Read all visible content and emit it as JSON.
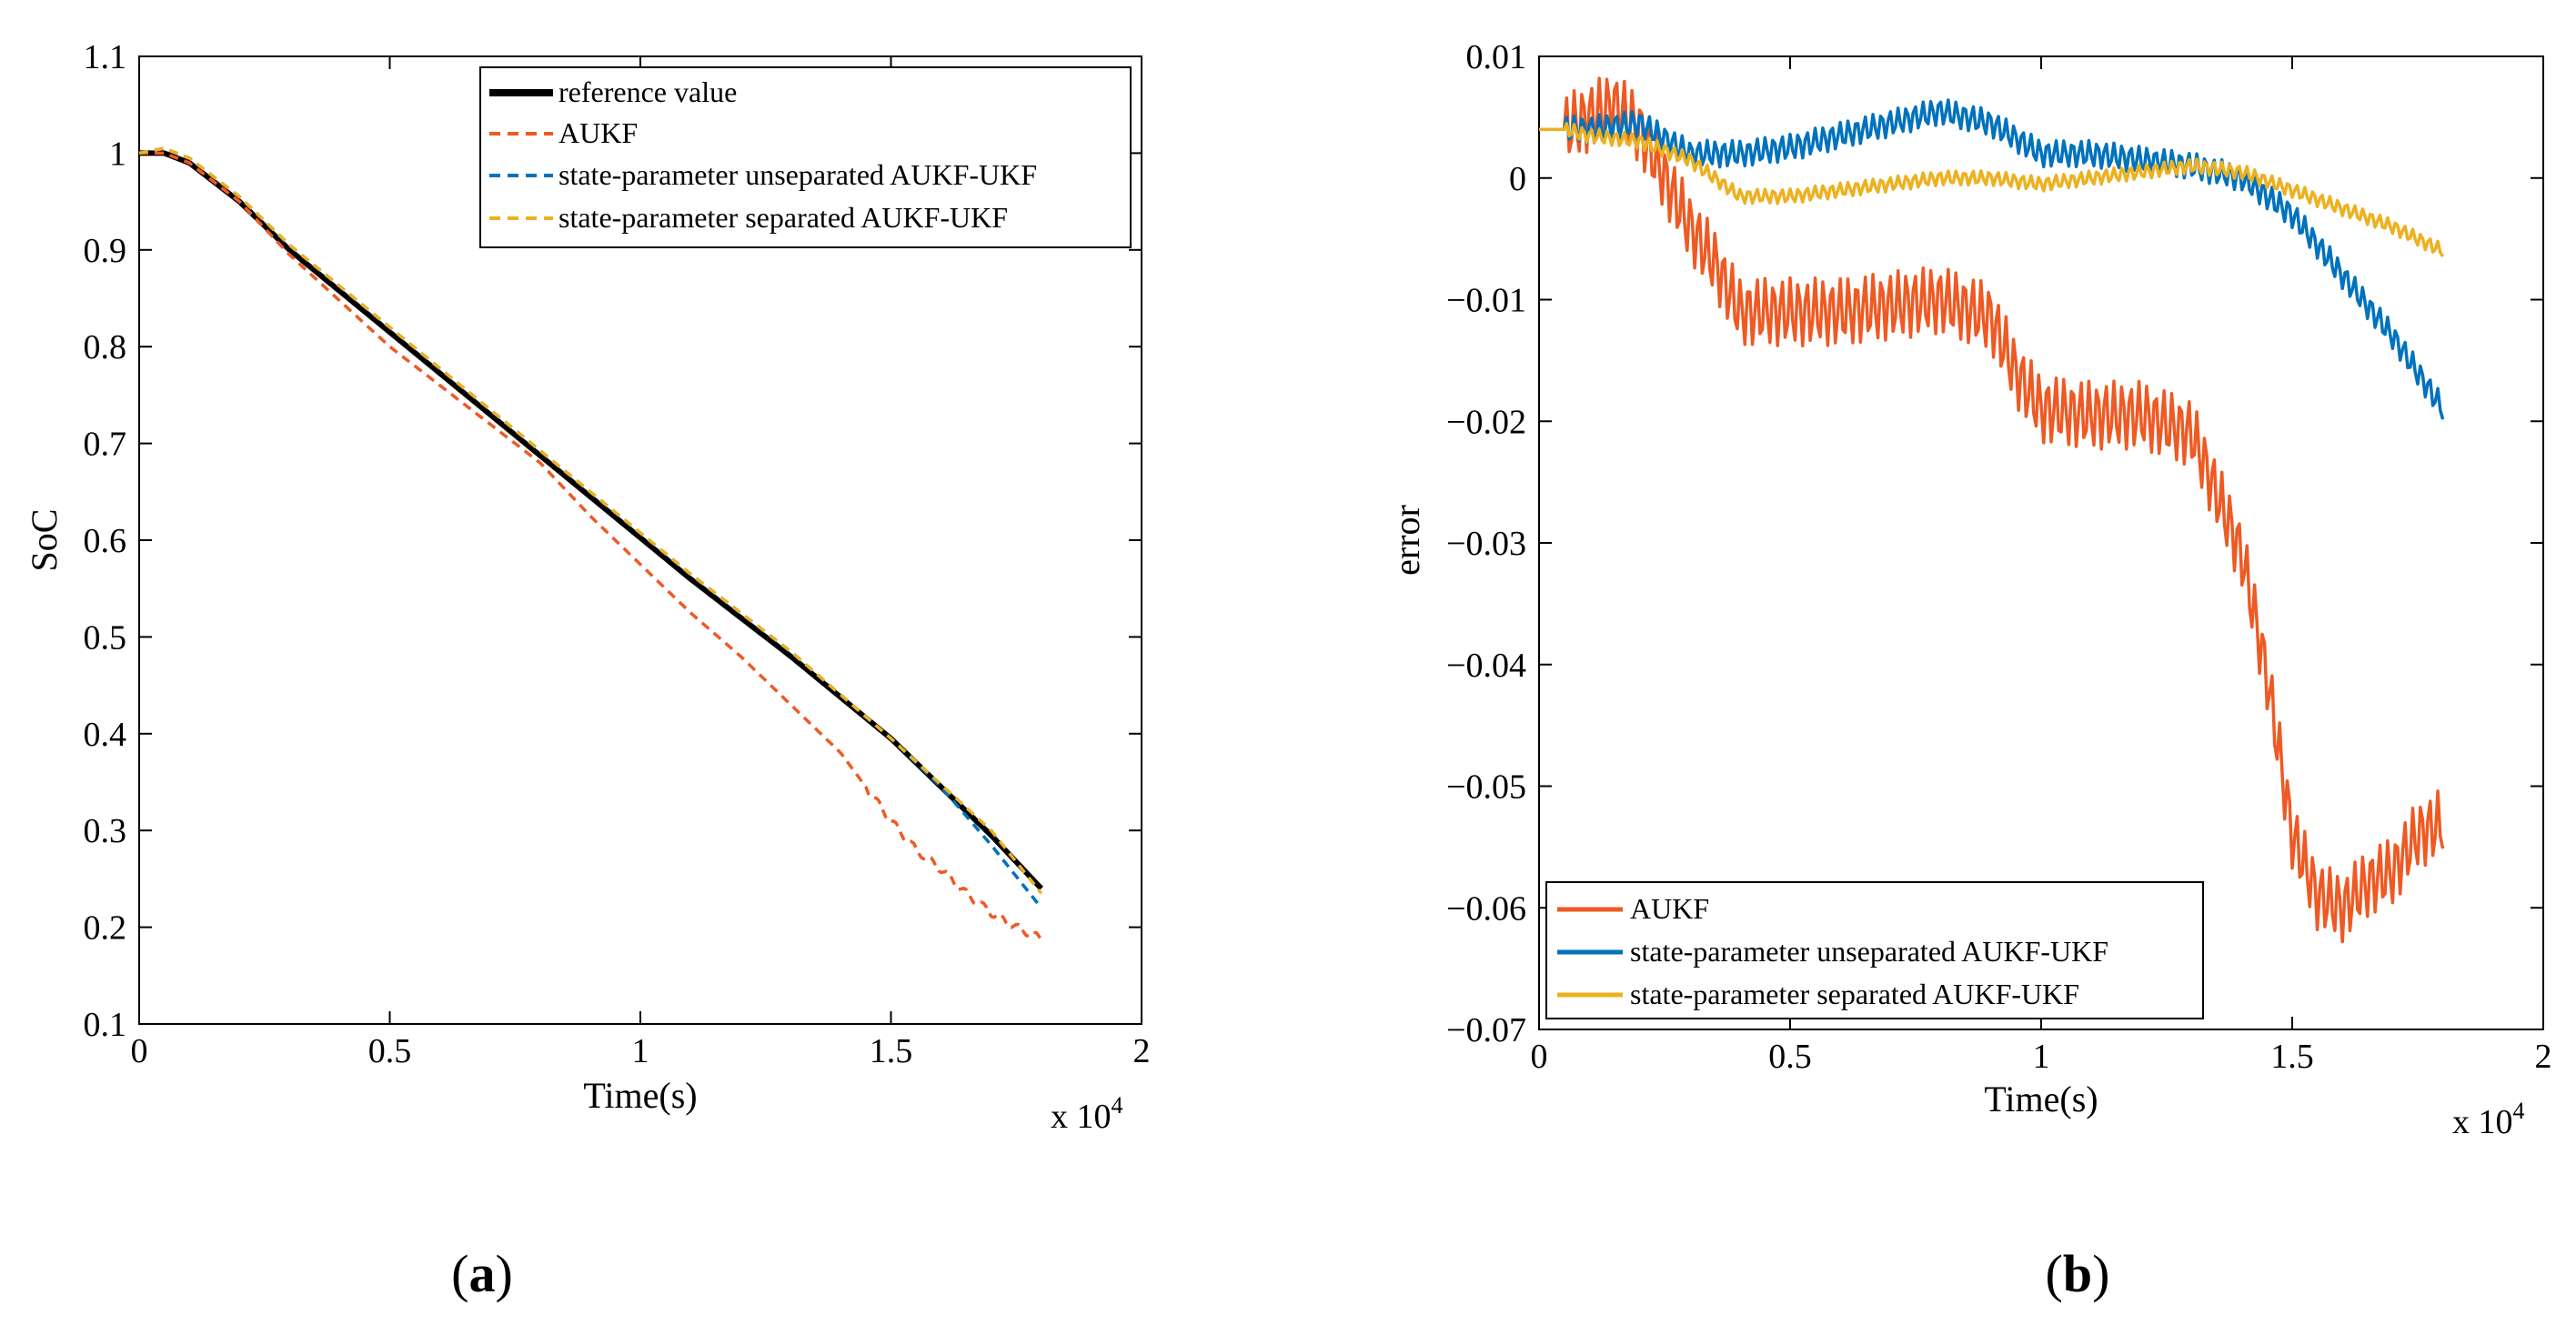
{
  "chart_data": [
    {
      "type": "line",
      "panel": "a",
      "caption_open": "(",
      "caption_letter": "a",
      "caption_close": ")",
      "xlabel": "Time(s)",
      "ylabel": "SoC",
      "x_multiplier": "x 10",
      "x_multiplier_exp": "4",
      "xlim": [
        0,
        2
      ],
      "ylim": [
        0.1,
        1.1
      ],
      "x_ticks": [
        "0",
        "0.5",
        "1",
        "1.5",
        "2"
      ],
      "y_ticks": [
        "0.1",
        "0.2",
        "0.3",
        "0.4",
        "0.5",
        "0.6",
        "0.7",
        "0.8",
        "0.9",
        "1",
        "1.1"
      ],
      "legend_position": "top-right",
      "series": [
        {
          "name": "reference value",
          "color": "#000000",
          "style": "solid-thick",
          "x": [
            0,
            0.05,
            0.1,
            0.2,
            0.3,
            0.5,
            0.7,
            0.9,
            1.1,
            1.3,
            1.5,
            1.7,
            1.8
          ],
          "y": [
            1.0,
            1.0,
            0.99,
            0.95,
            0.9,
            0.815,
            0.73,
            0.645,
            0.56,
            0.48,
            0.395,
            0.295,
            0.24
          ]
        },
        {
          "name": "AUKF",
          "color": "#EE5A24",
          "style": "dashed",
          "x": [
            0,
            0.05,
            0.1,
            0.2,
            0.3,
            0.5,
            0.6,
            0.7,
            0.8,
            0.9,
            1.0,
            1.1,
            1.2,
            1.3,
            1.4,
            1.5,
            1.55,
            1.6,
            1.65,
            1.7,
            1.75,
            1.8
          ],
          "y": [
            1.0,
            1.0,
            0.99,
            0.95,
            0.895,
            0.8,
            0.76,
            0.72,
            0.68,
            0.625,
            0.575,
            0.525,
            0.48,
            0.43,
            0.38,
            0.31,
            0.28,
            0.26,
            0.235,
            0.215,
            0.2,
            0.188
          ]
        },
        {
          "name": "state-parameter unseparated AUKF-UKF",
          "color": "#0072BD",
          "style": "dashed",
          "x": [
            0,
            0.05,
            0.1,
            0.2,
            0.3,
            0.5,
            0.7,
            0.9,
            1.1,
            1.3,
            1.5,
            1.6,
            1.7,
            1.8
          ],
          "y": [
            1.0,
            1.005,
            0.995,
            0.955,
            0.905,
            0.82,
            0.735,
            0.65,
            0.565,
            0.485,
            0.395,
            0.345,
            0.285,
            0.22
          ]
        },
        {
          "name": "state-parameter separated AUKF-UKF",
          "color": "#EDB120",
          "style": "dashed",
          "x": [
            0,
            0.05,
            0.1,
            0.2,
            0.3,
            0.5,
            0.7,
            0.9,
            1.1,
            1.3,
            1.5,
            1.7,
            1.8
          ],
          "y": [
            1.0,
            1.005,
            0.995,
            0.955,
            0.905,
            0.82,
            0.735,
            0.65,
            0.565,
            0.485,
            0.395,
            0.3,
            0.235
          ]
        }
      ]
    },
    {
      "type": "line",
      "panel": "b",
      "caption_open": "(",
      "caption_letter": "b",
      "caption_close": ")",
      "xlabel": "Time(s)",
      "ylabel": "error",
      "x_multiplier": "x 10",
      "x_multiplier_exp": "4",
      "xlim": [
        0,
        2
      ],
      "ylim": [
        -0.07,
        0.01
      ],
      "x_ticks": [
        "0",
        "0.5",
        "1",
        "1.5",
        "2"
      ],
      "y_ticks": [
        "-0.07",
        "-0.06",
        "-0.05",
        "-0.04",
        "-0.03",
        "-0.02",
        "-0.01",
        "0",
        "0.01"
      ],
      "legend_position": "bottom-left",
      "series": [
        {
          "name": "AUKF",
          "color": "#EE5A24",
          "style": "solid",
          "x": [
            0,
            0.05,
            0.1,
            0.15,
            0.2,
            0.25,
            0.3,
            0.35,
            0.4,
            0.5,
            0.6,
            0.7,
            0.8,
            0.9,
            0.95,
            1.0,
            1.1,
            1.2,
            1.3,
            1.35,
            1.4,
            1.45,
            1.5,
            1.55,
            1.6,
            1.65,
            1.7,
            1.75,
            1.8
          ],
          "y": [
            0.004,
            0.004,
            0.005,
            0.006,
            0.004,
            0.0,
            -0.004,
            -0.007,
            -0.011,
            -0.011,
            -0.011,
            -0.0105,
            -0.01,
            -0.0115,
            -0.016,
            -0.019,
            -0.0195,
            -0.0195,
            -0.021,
            -0.026,
            -0.031,
            -0.041,
            -0.054,
            -0.059,
            -0.06,
            -0.058,
            -0.057,
            -0.054,
            -0.053
          ]
        },
        {
          "name": "state-parameter unseparated AUKF-UKF",
          "color": "#0072BD",
          "style": "solid",
          "x": [
            0,
            0.05,
            0.1,
            0.2,
            0.3,
            0.4,
            0.5,
            0.6,
            0.7,
            0.8,
            0.9,
            1.0,
            1.1,
            1.2,
            1.3,
            1.4,
            1.5,
            1.6,
            1.7,
            1.8
          ],
          "y": [
            0.004,
            0.004,
            0.004,
            0.0045,
            0.002,
            0.002,
            0.0025,
            0.0035,
            0.0045,
            0.0055,
            0.0045,
            0.002,
            0.002,
            0.0015,
            0.001,
            0.0,
            -0.003,
            -0.008,
            -0.013,
            -0.019
          ]
        },
        {
          "name": "state-parameter separated AUKF-UKF",
          "color": "#EDB120",
          "style": "solid",
          "x": [
            0,
            0.05,
            0.1,
            0.2,
            0.3,
            0.4,
            0.5,
            0.6,
            0.7,
            0.8,
            0.9,
            1.0,
            1.1,
            1.2,
            1.3,
            1.4,
            1.5,
            1.6,
            1.7,
            1.8
          ],
          "y": [
            0.004,
            0.004,
            0.0035,
            0.003,
            0.0015,
            -0.0015,
            -0.0015,
            -0.001,
            -0.0005,
            0.0,
            0.0,
            -0.0005,
            0.0,
            0.0005,
            0.001,
            0.0005,
            -0.001,
            -0.0025,
            -0.004,
            -0.006
          ]
        }
      ]
    }
  ]
}
